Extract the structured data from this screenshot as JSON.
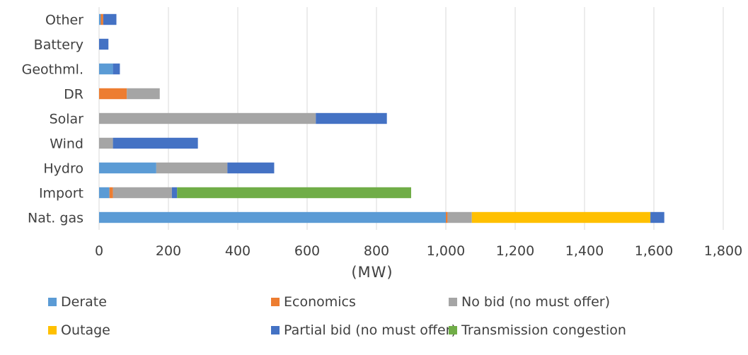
{
  "chart_data": {
    "type": "bar",
    "orientation": "horizontal",
    "stacked": true,
    "categories": [
      "Nat. gas",
      "Import",
      "Hydro",
      "Wind",
      "Solar",
      "DR",
      "Geothml.",
      "Battery",
      "Other"
    ],
    "series": [
      {
        "name": "Derate",
        "color": "#5B9BD5",
        "values": [
          1000,
          30,
          165,
          0,
          0,
          0,
          40,
          0,
          5
        ]
      },
      {
        "name": "Economics",
        "color": "#ED7D31",
        "values": [
          5,
          10,
          0,
          0,
          0,
          80,
          0,
          0,
          7
        ]
      },
      {
        "name": "No bid (no must offer)",
        "color": "#A5A5A5",
        "values": [
          70,
          170,
          205,
          40,
          625,
          95,
          0,
          0,
          0
        ]
      },
      {
        "name": "Outage",
        "color": "#FFC000",
        "values": [
          515,
          0,
          0,
          0,
          0,
          0,
          0,
          0,
          0
        ]
      },
      {
        "name": "Partial bid (no must offer)",
        "color": "#4472C4",
        "values": [
          40,
          15,
          135,
          245,
          205,
          0,
          20,
          27,
          38
        ]
      },
      {
        "name": "Transmission congestion",
        "color": "#70AD47",
        "values": [
          0,
          675,
          0,
          0,
          0,
          0,
          0,
          0,
          0
        ]
      }
    ],
    "xlim": [
      0,
      1800
    ],
    "xticks": [
      0,
      200,
      400,
      600,
      800,
      1000,
      1200,
      1400,
      1600,
      1800
    ],
    "xtick_labels": [
      "0",
      "200",
      "400",
      "600",
      "800",
      "1,000",
      "1,200",
      "1,400",
      "1,600",
      "1,800"
    ],
    "xlabel": "(MW)",
    "grid": "vertical",
    "legend_placement": "bottom"
  }
}
